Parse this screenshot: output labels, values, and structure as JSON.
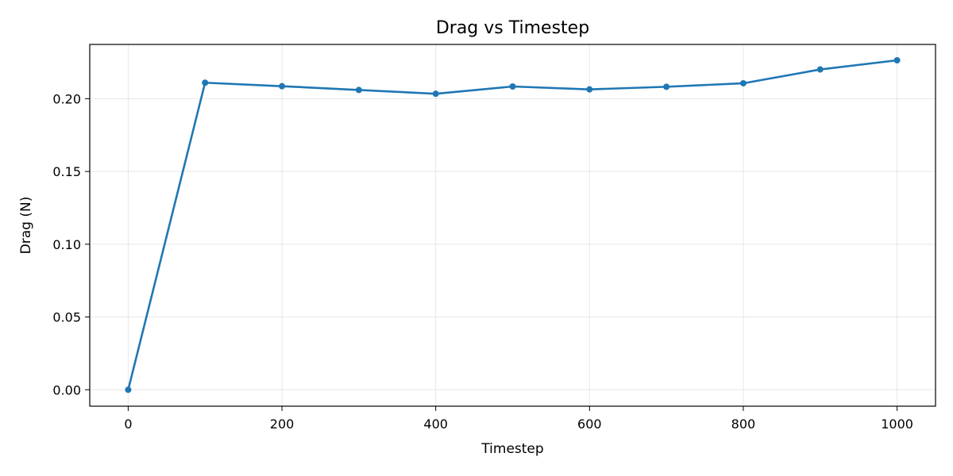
{
  "chart_data": {
    "type": "line",
    "title": "Drag vs Timestep",
    "xlabel": "Timestep",
    "ylabel": "Drag (N)",
    "xlim": [
      -50,
      1050
    ],
    "ylim": [
      -0.0113,
      0.2373
    ],
    "xticks": [
      0,
      200,
      400,
      600,
      800,
      1000
    ],
    "xtick_labels": [
      "0",
      "200",
      "400",
      "600",
      "800",
      "1000"
    ],
    "yticks": [
      0.0,
      0.05,
      0.1,
      0.15,
      0.2
    ],
    "ytick_labels": [
      "0.00",
      "0.05",
      "0.10",
      "0.15",
      "0.20"
    ],
    "grid": true,
    "series": [
      {
        "name": "Drag",
        "color": "#1f77b4",
        "marker": "circle",
        "x": [
          0,
          100,
          200,
          300,
          400,
          500,
          600,
          700,
          800,
          900,
          1000
        ],
        "values": [
          0.0,
          0.211,
          0.2086,
          0.206,
          0.2034,
          0.2084,
          0.2064,
          0.2082,
          0.2106,
          0.2201,
          0.2264
        ]
      }
    ]
  }
}
